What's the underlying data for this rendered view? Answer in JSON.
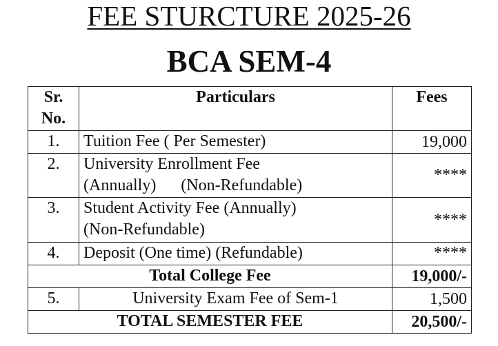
{
  "title": "FEE STURCTURE 2025-26",
  "subtitle": "BCA SEM-4",
  "table": {
    "headers": {
      "sr": "Sr. No.",
      "particulars": "Particulars",
      "fees": "Fees"
    },
    "rows": [
      {
        "sr": "1.",
        "line1": "Tuition Fee ( Per Semester)",
        "line2": "",
        "fee": "19,000"
      },
      {
        "sr": "2.",
        "line1": "University Enrollment Fee",
        "line2": "(Annually)      (Non-Refundable)",
        "fee": "****"
      },
      {
        "sr": "3.",
        "line1": "Student Activity Fee (Annually)",
        "line2": "(Non-Refundable)",
        "fee": "****"
      },
      {
        "sr": "4.",
        "line1": "Deposit (One time) (Refundable)",
        "line2": "",
        "fee": "****"
      }
    ],
    "total_college": {
      "label": "Total College Fee",
      "fee": "19,000/-"
    },
    "exam_row": {
      "sr": "5.",
      "label": "University Exam Fee of Sem-1",
      "fee": "1,500"
    },
    "total_semester": {
      "label": "TOTAL SEMESTER FEE",
      "fee": "20,500/-"
    }
  }
}
